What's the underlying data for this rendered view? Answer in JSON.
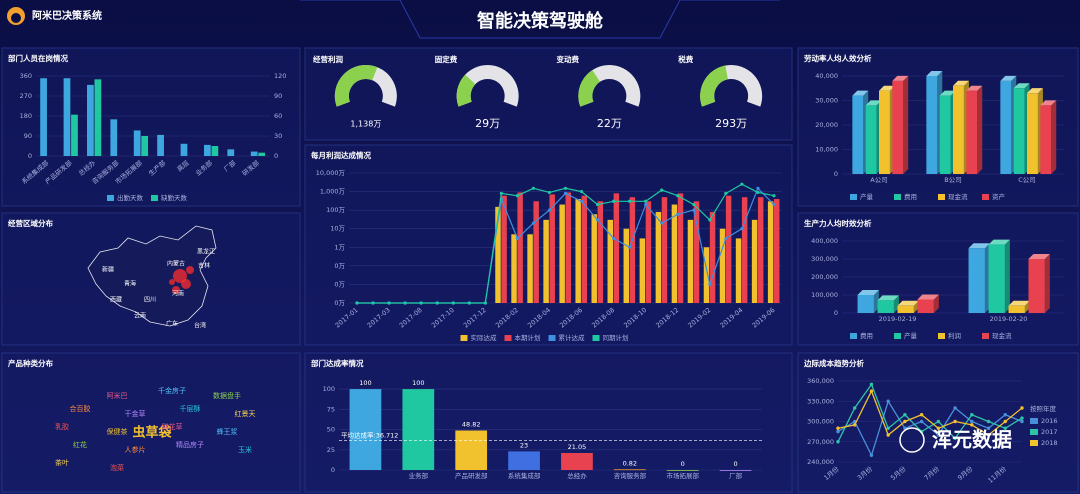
{
  "header": {
    "logo": "阿米巴决策系统",
    "title": "智能决策驾驶舱"
  },
  "watermark": "浑元数据",
  "chart_data": [
    {
      "type": "bar",
      "title": "部门人员在岗情况",
      "categories": [
        "系统集成部",
        "产品研发部",
        "总经办",
        "咨询服务部",
        "市场拓展部",
        "生产部",
        "高层",
        "业务部",
        "厂部",
        "研发部"
      ],
      "series": [
        {
          "name": "出勤天数",
          "color": "#3fa7e0",
          "values": [
            350,
            350,
            320,
            165,
            115,
            95,
            55,
            50,
            30,
            20
          ]
        },
        {
          "name": "缺勤天数",
          "color": "#1fc8a0",
          "axis": "y2",
          "values": [
            0,
            62,
            115,
            0,
            30,
            0,
            0,
            15,
            0,
            5
          ]
        }
      ],
      "ylim": [
        0,
        360
      ],
      "yticks": [
        0,
        90,
        180,
        270,
        360
      ],
      "y2lim": [
        0,
        120
      ],
      "y2ticks": [
        0,
        30,
        60,
        90,
        120
      ],
      "grid": true
    },
    {
      "type": "map",
      "title": "经营区域分布",
      "labels": [
        "新疆",
        "西藏",
        "内蒙古",
        "黑龙江",
        "吉林",
        "青海",
        "四川",
        "云南",
        "广东",
        "台湾",
        "河南"
      ]
    },
    {
      "type": "wordcloud",
      "title": "产品种类分布",
      "words": [
        "虫草袋",
        "阿米巴",
        "千金房子",
        "数据盘手",
        "合百胶",
        "干金草",
        "千层酥",
        "红景天",
        "乳胶",
        "保健茶",
        "鲜花草",
        "蜂王浆",
        "红花",
        "人参片",
        "精品房子",
        "玉米",
        "茶叶",
        "泡菜"
      ],
      "colors": [
        "#f2c12e",
        "#e85a8a",
        "#4fc3f7",
        "#8bd14e",
        "#ff8a3d",
        "#b388ff",
        "#26c6da",
        "#ffd54f",
        "#ef5350"
      ]
    },
    {
      "type": "gauge",
      "categories": [
        "经营利润",
        "固定费",
        "变动费",
        "税费"
      ],
      "values": [
        1138,
        29,
        22,
        293
      ],
      "value_labels": [
        "1,138万",
        "29万",
        "22万",
        "293万"
      ],
      "maxima": [
        1900,
        100,
        63,
        650
      ],
      "color": "#8bd14e",
      "track": "#e4e4e8"
    },
    {
      "type": "combo",
      "title": "每月利润达成情况",
      "log": true,
      "categories": [
        "2017-01",
        null,
        "2017-03",
        null,
        "2017-08",
        null,
        "2017-10",
        null,
        "2017-12",
        null,
        "2018-02",
        null,
        "2018-04",
        null,
        "2018-06",
        null,
        "2018-08",
        null,
        "2018-10",
        null,
        "2018-12",
        null,
        "2019-02",
        null,
        "2019-04",
        null,
        "2019-06"
      ],
      "series": [
        {
          "name": "实际达成",
          "type": "bar",
          "color": "#f2c12e",
          "values": [
            null,
            null,
            null,
            null,
            null,
            null,
            null,
            null,
            null,
            150,
            5,
            5,
            30,
            200,
            400,
            60,
            30,
            10,
            3,
            80,
            200,
            30,
            1,
            10,
            3,
            30,
            300
          ]
        },
        {
          "name": "本期计划",
          "type": "bar",
          "color": "#e8414f",
          "values": [
            null,
            null,
            null,
            null,
            null,
            null,
            null,
            null,
            null,
            600,
            900,
            300,
            700,
            900,
            600,
            300,
            800,
            500,
            300,
            500,
            800,
            300,
            80,
            600,
            500,
            500,
            400
          ]
        },
        {
          "name": "累计达成",
          "type": "line",
          "color": "#3f8fe0",
          "values": [
            0.001,
            0.001,
            0.001,
            0.001,
            0.001,
            0.001,
            0.001,
            0.001,
            0.001,
            400,
            3,
            20,
            100,
            800,
            300,
            30,
            3,
            1,
            200,
            20,
            60,
            100,
            0.01,
            3,
            10,
            1500,
            200
          ]
        },
        {
          "name": "同期计划",
          "type": "line",
          "color": "#1fc8a0",
          "values": [
            0.001,
            0.001,
            0.001,
            0.001,
            0.001,
            0.001,
            0.001,
            0.001,
            0.001,
            800,
            600,
            1500,
            900,
            1500,
            1000,
            200,
            300,
            300,
            300,
            1200,
            600,
            200,
            30,
            800,
            2500,
            900,
            600
          ]
        }
      ],
      "ylim": [
        0.001,
        10000
      ],
      "yticks": [
        {
          "value": 0.001,
          "label": "0万"
        },
        {
          "value": 0.01,
          "label": "0万"
        },
        {
          "value": 0.1,
          "label": "0万"
        },
        {
          "value": 1,
          "label": "1万"
        },
        {
          "value": 10,
          "label": "10万"
        },
        {
          "value": 100,
          "label": "100万"
        },
        {
          "value": 1000,
          "label": "1,000万"
        },
        {
          "value": 10000,
          "label": "10,000万"
        }
      ],
      "grid": true
    },
    {
      "type": "bar",
      "title": "部门达成率情况",
      "categories": [
        null,
        "业务部",
        "产品研发部",
        "系统集成部",
        "总经办",
        "咨询服务部",
        "市场拓展部",
        "厂部"
      ],
      "values": [
        100,
        100,
        48.82,
        23,
        21.05,
        0.82,
        0,
        0
      ],
      "colors": [
        "#3fa7e0",
        "#1fc8a0",
        "#f2c12e",
        "#3f6fe0",
        "#e8414f",
        "#f2a12e",
        "#8bd14e",
        "#b388ff"
      ],
      "average": {
        "value": 36.712,
        "label": "平均达成率:36.712"
      },
      "ylim": [
        0,
        110
      ],
      "yticks": [
        0,
        25,
        50,
        75,
        100
      ],
      "grid": true
    },
    {
      "type": "bar3d",
      "title": "劳动率人均人效分析",
      "categories": [
        "A公司",
        "B公司",
        "C公司"
      ],
      "series": [
        {
          "name": "产量",
          "color": "#3fa7e0",
          "values": [
            32000,
            40000,
            38000
          ]
        },
        {
          "name": "费用",
          "color": "#1fc8a0",
          "values": [
            28000,
            32000,
            35000
          ]
        },
        {
          "name": "现金流",
          "color": "#f2c12e",
          "values": [
            34000,
            36000,
            33000
          ]
        },
        {
          "name": "资产",
          "color": "#e8414f",
          "values": [
            38000,
            34000,
            28000
          ]
        }
      ],
      "ylim": [
        0,
        40000
      ],
      "yticks": [
        0,
        {
          "value": 10000,
          "label": "10,000"
        },
        {
          "value": 20000,
          "label": "20,000"
        },
        {
          "value": 30000,
          "label": "30,000"
        },
        {
          "value": 40000,
          "label": "40,000"
        }
      ],
      "grid": true
    },
    {
      "type": "bar3d",
      "title": "生产力人均时效分析",
      "categories": [
        "2019-02-19",
        "2019-02-20"
      ],
      "series": [
        {
          "name": "费用",
          "color": "#3fa7e0",
          "values": [
            100000,
            360000
          ]
        },
        {
          "name": "产量",
          "color": "#1fc8a0",
          "values": [
            70000,
            380000
          ]
        },
        {
          "name": "利润",
          "color": "#f2c12e",
          "values": [
            40000,
            40000
          ]
        },
        {
          "name": "现金流",
          "color": "#e8414f",
          "values": [
            75000,
            300000
          ]
        }
      ],
      "ylim": [
        0,
        400000
      ],
      "yticks": [
        0,
        {
          "value": 100000,
          "label": "100,000"
        },
        {
          "value": 200000,
          "label": "200,000"
        },
        {
          "value": 300000,
          "label": "300,000"
        },
        {
          "value": 400000,
          "label": "400,000"
        }
      ],
      "grid": true
    },
    {
      "type": "line",
      "title": "边际成本趋势分析",
      "legend_title": "按照年度",
      "categories": [
        "1月份",
        null,
        "3月份",
        null,
        "5月份",
        null,
        "7月份",
        null,
        "9月份",
        null,
        "11月份",
        null
      ],
      "series": [
        {
          "name": "2016",
          "color": "#4a90d9",
          "values": [
            285000,
            300000,
            250000,
            330000,
            290000,
            300000,
            280000,
            320000,
            300000,
            290000,
            310000,
            300000
          ]
        },
        {
          "name": "2017",
          "color": "#2ec4a6",
          "values": [
            270000,
            320000,
            355000,
            290000,
            310000,
            285000,
            300000,
            275000,
            310000,
            300000,
            290000,
            305000
          ]
        },
        {
          "name": "2018",
          "color": "#f2c12e",
          "values": [
            290000,
            295000,
            345000,
            280000,
            300000,
            310000,
            290000,
            300000,
            295000,
            280000,
            300000,
            320000
          ]
        }
      ],
      "ylim": [
        240000,
        360000
      ],
      "yticks": [
        {
          "value": 240000,
          "label": "240,000"
        },
        {
          "value": 270000,
          "label": "270,000"
        },
        {
          "value": 300000,
          "label": "300,000"
        },
        {
          "value": 330000,
          "label": "330,000"
        },
        {
          "value": 360000,
          "label": "360,000"
        }
      ],
      "grid": true
    }
  ]
}
